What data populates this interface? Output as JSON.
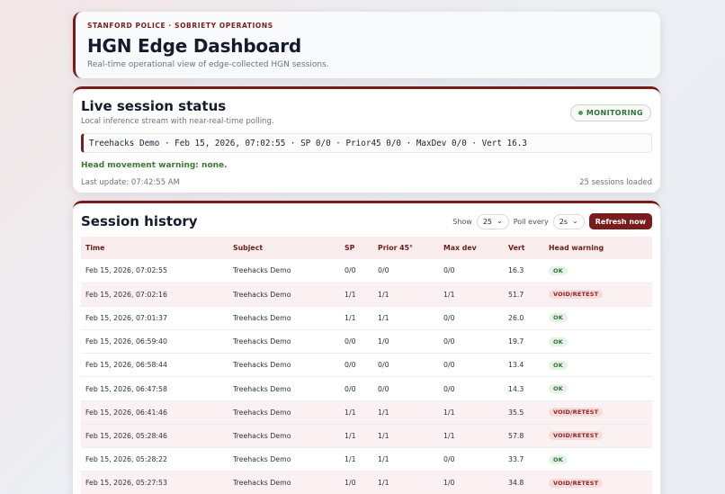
{
  "header": {
    "kicker": "STANFORD POLICE · SOBRIETY OPERATIONS",
    "title": "HGN Edge Dashboard",
    "subtitle": "Real-time operational view of edge-collected HGN sessions."
  },
  "live": {
    "title": "Live session status",
    "subtitle": "Local inference stream with near-real-time polling.",
    "badge": "MONITORING",
    "stream_line": "Treehacks Demo · Feb 15, 2026, 07:02:55 · SP 0/0 · Prior45 0/0 · MaxDev 0/0 · Vert 16.3",
    "warning": "Head movement warning: none.",
    "last_update": "Last update: 07:42:55 AM",
    "sessions_loaded": "25 sessions loaded"
  },
  "history": {
    "title": "Session history",
    "show_label": "Show",
    "show_value": "25",
    "poll_label": "Poll every",
    "poll_value": "2s",
    "refresh_label": "Refresh now",
    "columns": [
      "Time",
      "Subject",
      "SP",
      "Prior 45°",
      "Max dev",
      "Vert",
      "Head warning"
    ],
    "rows": [
      {
        "time": "Feb 15, 2026, 07:02:55",
        "subject": "Treehacks Demo",
        "sp": "0/0",
        "prior45": "0/0",
        "maxdev": "0/0",
        "vert": "16.3",
        "warning": "OK",
        "status": "ok"
      },
      {
        "time": "Feb 15, 2026, 07:02:16",
        "subject": "Treehacks Demo",
        "sp": "1/1",
        "prior45": "1/1",
        "maxdev": "1/1",
        "vert": "51.7",
        "warning": "VOID/RETEST",
        "status": "void"
      },
      {
        "time": "Feb 15, 2026, 07:01:37",
        "subject": "Treehacks Demo",
        "sp": "1/1",
        "prior45": "1/1",
        "maxdev": "0/0",
        "vert": "26.0",
        "warning": "OK",
        "status": "ok"
      },
      {
        "time": "Feb 15, 2026, 06:59:40",
        "subject": "Treehacks Demo",
        "sp": "0/0",
        "prior45": "1/0",
        "maxdev": "0/0",
        "vert": "19.7",
        "warning": "OK",
        "status": "ok"
      },
      {
        "time": "Feb 15, 2026, 06:58:44",
        "subject": "Treehacks Demo",
        "sp": "0/0",
        "prior45": "0/0",
        "maxdev": "0/0",
        "vert": "13.4",
        "warning": "OK",
        "status": "ok"
      },
      {
        "time": "Feb 15, 2026, 06:47:58",
        "subject": "Treehacks Demo",
        "sp": "0/0",
        "prior45": "0/0",
        "maxdev": "0/0",
        "vert": "14.3",
        "warning": "OK",
        "status": "ok"
      },
      {
        "time": "Feb 15, 2026, 06:41:46",
        "subject": "Treehacks Demo",
        "sp": "1/1",
        "prior45": "1/1",
        "maxdev": "1/1",
        "vert": "35.5",
        "warning": "VOID/RETEST",
        "status": "void"
      },
      {
        "time": "Feb 15, 2026, 05:28:46",
        "subject": "Treehacks Demo",
        "sp": "1/1",
        "prior45": "1/1",
        "maxdev": "1/1",
        "vert": "57.8",
        "warning": "VOID/RETEST",
        "status": "void"
      },
      {
        "time": "Feb 15, 2026, 05:28:22",
        "subject": "Treehacks Demo",
        "sp": "1/1",
        "prior45": "1/1",
        "maxdev": "0/0",
        "vert": "33.7",
        "warning": "OK",
        "status": "ok"
      },
      {
        "time": "Feb 15, 2026, 05:27:53",
        "subject": "Treehacks Demo",
        "sp": "1/0",
        "prior45": "1/1",
        "maxdev": "1/0",
        "vert": "34.8",
        "warning": "VOID/RETEST",
        "status": "void"
      }
    ]
  },
  "colors": {
    "accent": "#7b1c1c",
    "ok_green": "#2f6f3a",
    "void_red": "#8a1f1f",
    "void_row_bg": "#fcf1f2"
  },
  "icons": {
    "monitoring": "status-dot-icon",
    "select_caret": "chevron-down-icon"
  }
}
